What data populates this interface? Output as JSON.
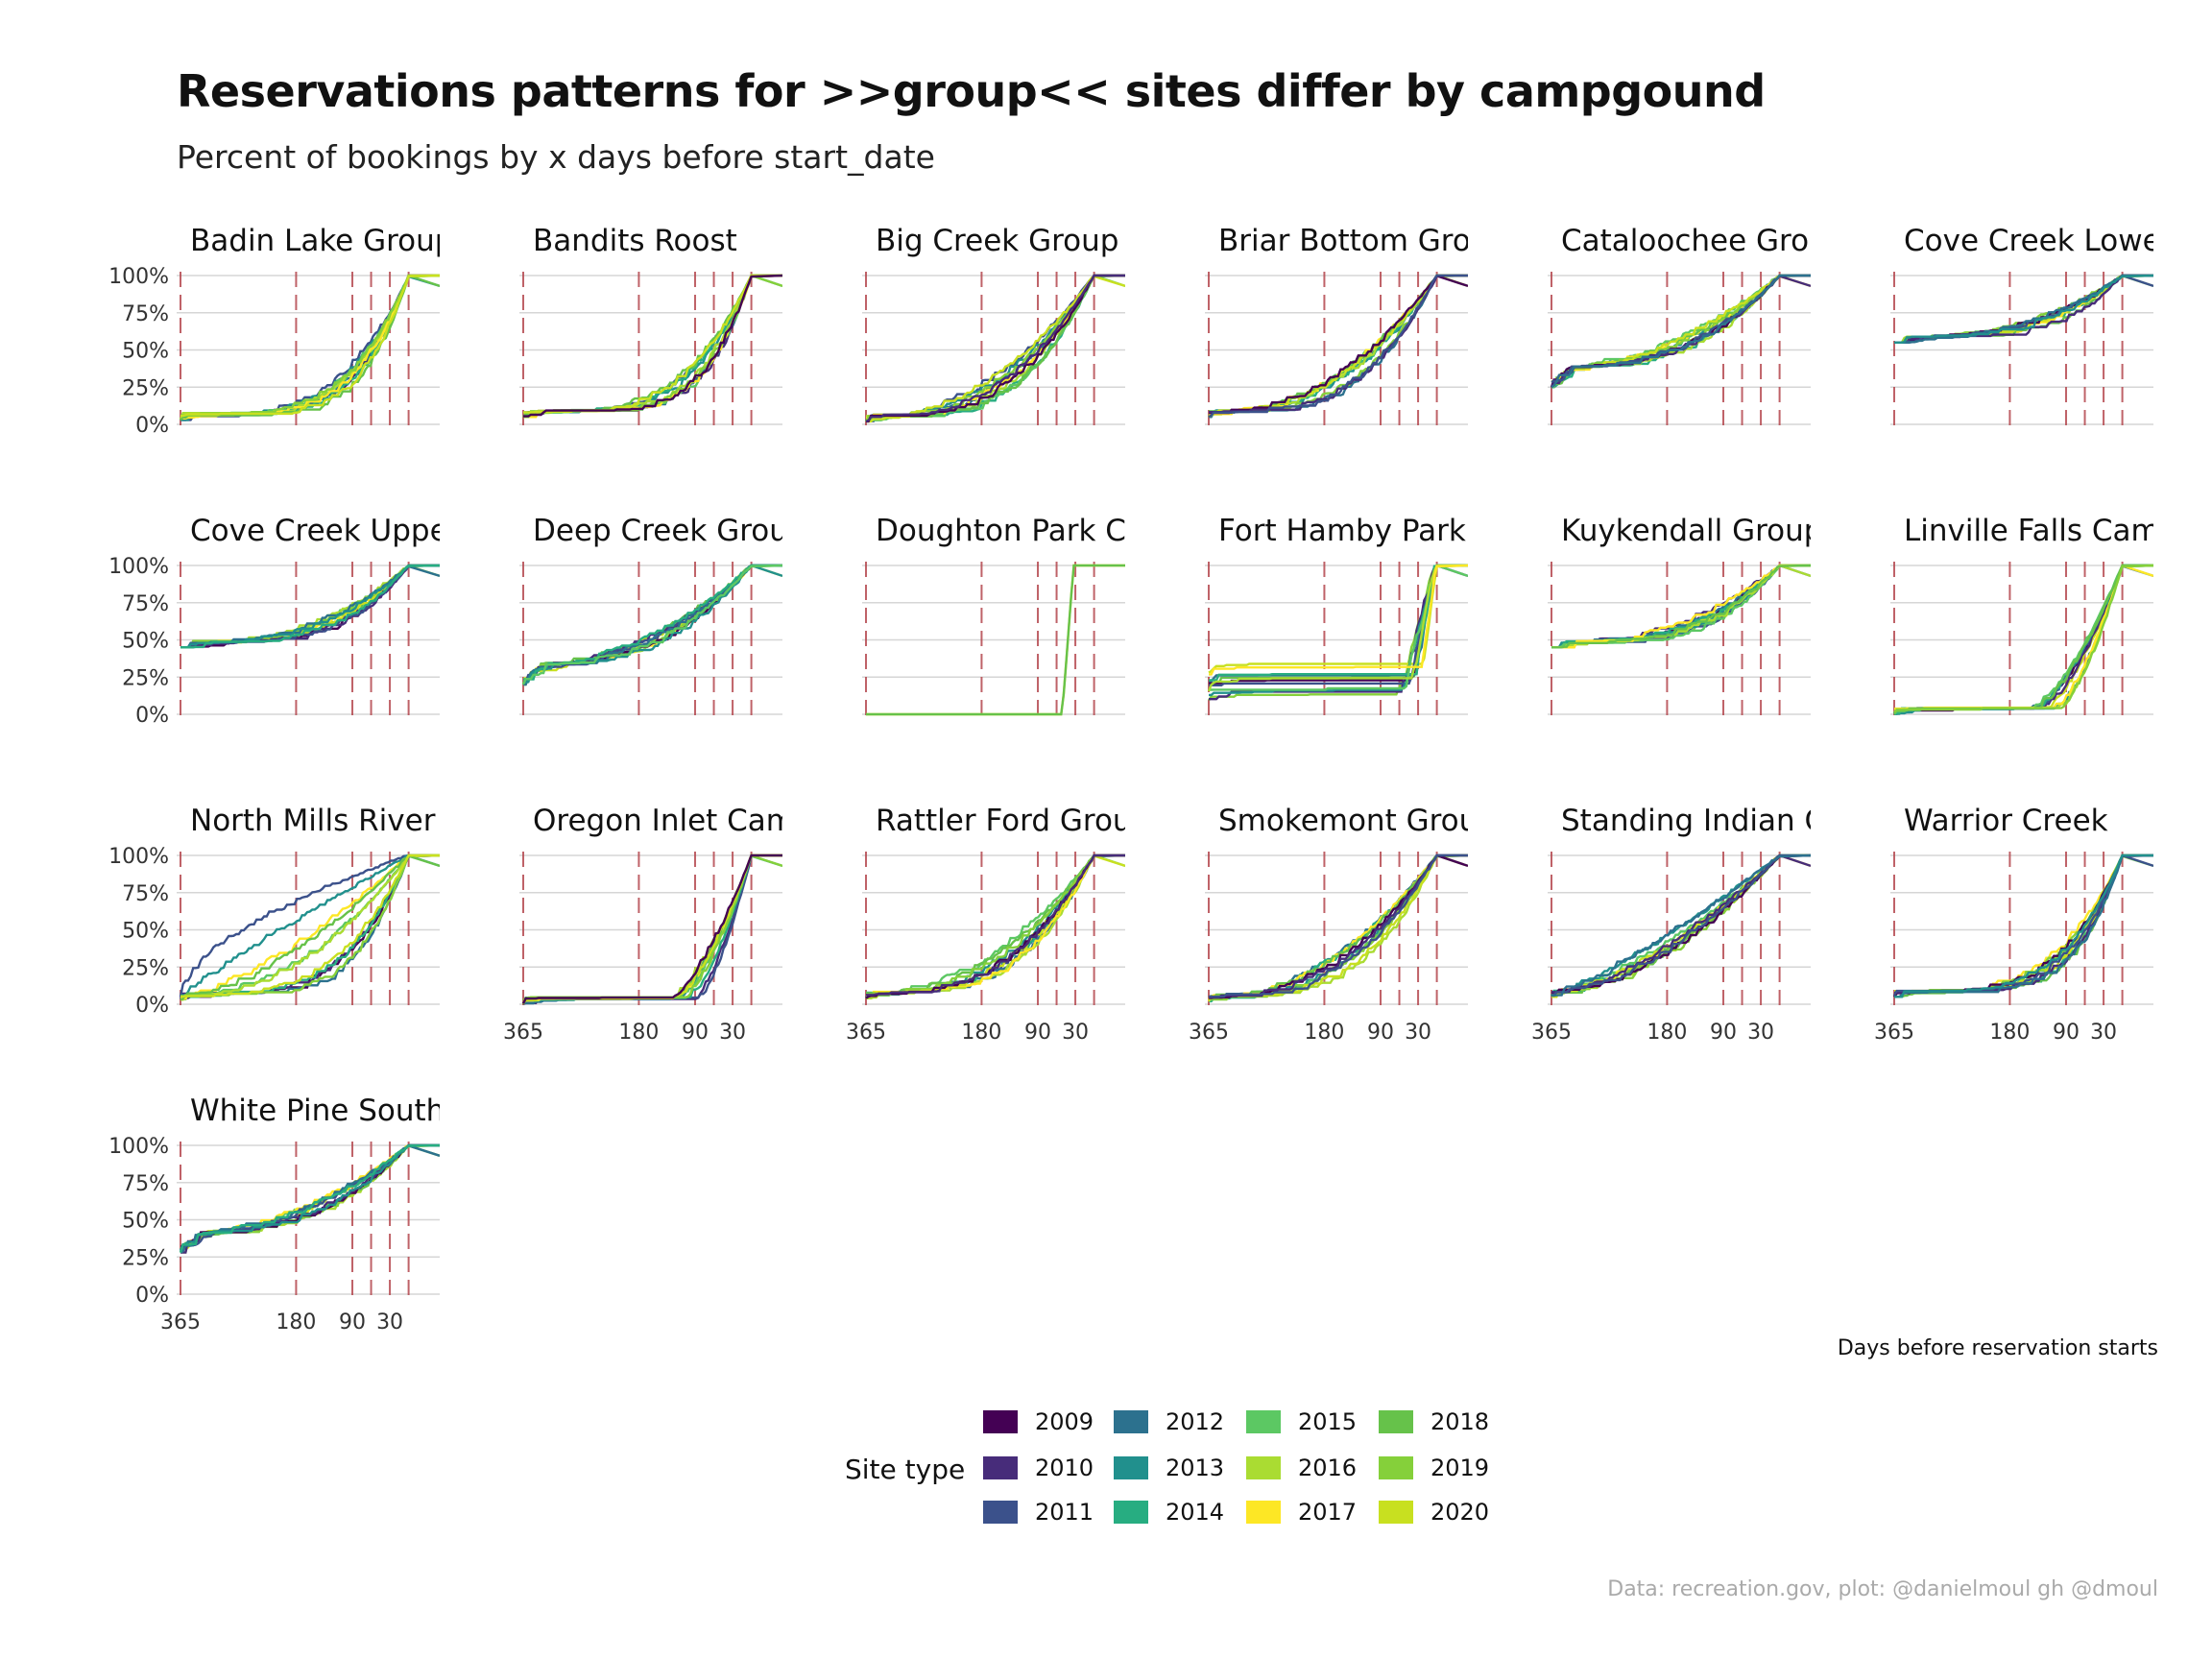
{
  "title": "Reservations patterns for >>group<< sites differ by campgound",
  "subtitle": "Percent of bookings by x days before start_date",
  "caption": "Data: recreation.gov, plot: @danielmoul gh @dmoul",
  "chart_data": {
    "type": "line",
    "xlabel": "Days before reservation starts",
    "ylabel": "",
    "x_reversed": true,
    "xlim": [
      365,
      0
    ],
    "ylim": [
      0,
      1
    ],
    "x_ticks": [
      365,
      180,
      90,
      30
    ],
    "y_ticks": [
      "0%",
      "25%",
      "50%",
      "75%",
      "100%"
    ],
    "reference_lines_days": [
      365,
      180,
      90,
      60,
      30,
      0
    ],
    "legend": {
      "title": "Site type",
      "position": "bottom",
      "entries": [
        {
          "label": "2009",
          "color": "#440154"
        },
        {
          "label": "2010",
          "color": "#472c7a"
        },
        {
          "label": "2011",
          "color": "#3b518b"
        },
        {
          "label": "2012",
          "color": "#2c718e"
        },
        {
          "label": "2013",
          "color": "#21908d"
        },
        {
          "label": "2014",
          "color": "#27ad81"
        },
        {
          "label": "2015",
          "color": "#5cc863"
        },
        {
          "label": "2016",
          "color": "#aadc32"
        },
        {
          "label": "2017",
          "color": "#fde725"
        },
        {
          "label": "2018",
          "color": "#66c24a"
        },
        {
          "label": "2019",
          "color": "#85d03a"
        },
        {
          "label": "2020",
          "color": "#c8e020"
        }
      ]
    },
    "panels": [
      {
        "name": "Badin Lake Group",
        "shape": "late",
        "start": 0.03
      },
      {
        "name": "Bandits Roost",
        "shape": "late",
        "start": 0.05
      },
      {
        "name": "Big Creek Group C",
        "shape": "late-moderate",
        "start": 0.02
      },
      {
        "name": "Briar Bottom Grou",
        "shape": "late-moderate",
        "start": 0.05
      },
      {
        "name": "Cataloochee Grou",
        "shape": "early",
        "start": 0.25
      },
      {
        "name": "Cove Creek Lower",
        "shape": "very-early",
        "start": 0.55
      },
      {
        "name": "Cove Creek Upper",
        "shape": "very-early",
        "start": 0.45
      },
      {
        "name": "Deep Creek Group",
        "shape": "early",
        "start": 0.2
      },
      {
        "name": "Doughton Park Ca",
        "shape": "flat-then-jump",
        "start": 0.0
      },
      {
        "name": "Fort Hamby Park",
        "shape": "step",
        "start": 0.05
      },
      {
        "name": "Kuykendall Group",
        "shape": "very-early",
        "start": 0.45
      },
      {
        "name": "Linville Falls Camp",
        "shape": "late-steep",
        "start": 0.0
      },
      {
        "name": "North Mills River",
        "shape": "mixed",
        "start": 0.03
      },
      {
        "name": "Oregon Inlet Camp",
        "shape": "late-steep",
        "start": 0.0
      },
      {
        "name": "Rattler Ford Group",
        "shape": "late-moderate",
        "start": 0.04
      },
      {
        "name": "Smokemont Group",
        "shape": "late-moderate",
        "start": 0.02
      },
      {
        "name": "Standing Indian Ca",
        "shape": "linear",
        "start": 0.05
      },
      {
        "name": "Warrior Creek",
        "shape": "late",
        "start": 0.05
      },
      {
        "name": "White Pine South (",
        "shape": "early",
        "start": 0.28
      }
    ]
  }
}
